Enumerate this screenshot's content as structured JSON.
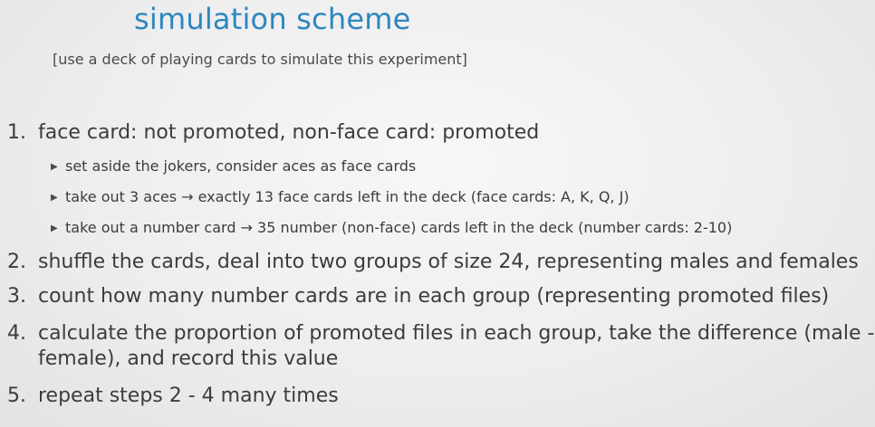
{
  "slide": {
    "title": "simulation scheme",
    "subtitle": "[use a deck of playing cards to simulate this experiment]",
    "steps": [
      {
        "number": "1.",
        "text": "face card: not promoted, non-face card: promoted",
        "bullets": [
          "set aside the jokers, consider aces as face cards",
          "take out 3 aces → exactly 13 face cards left in the deck (face cards: A, K, Q, J)",
          "take out a number card → 35 number (non-face) cards left in the deck (number cards: 2-10)"
        ]
      },
      {
        "number": "2.",
        "text": "shuffle the cards, deal into two groups of size 24, representing males and females"
      },
      {
        "number": "3.",
        "text": "count how many number cards are in each group (representing promoted files)"
      },
      {
        "number": "4.",
        "text": "calculate the proportion of promoted files in each group, take the difference (male -",
        "text_cont": "female), and record this value"
      },
      {
        "number": "5.",
        "text": "repeat steps 2 - 4 many times"
      }
    ],
    "bullet_icon": "triangle-right-icon",
    "colors": {
      "title": "#2f86c0",
      "text": "#3c3c3c",
      "background": "#eeeeee"
    }
  }
}
